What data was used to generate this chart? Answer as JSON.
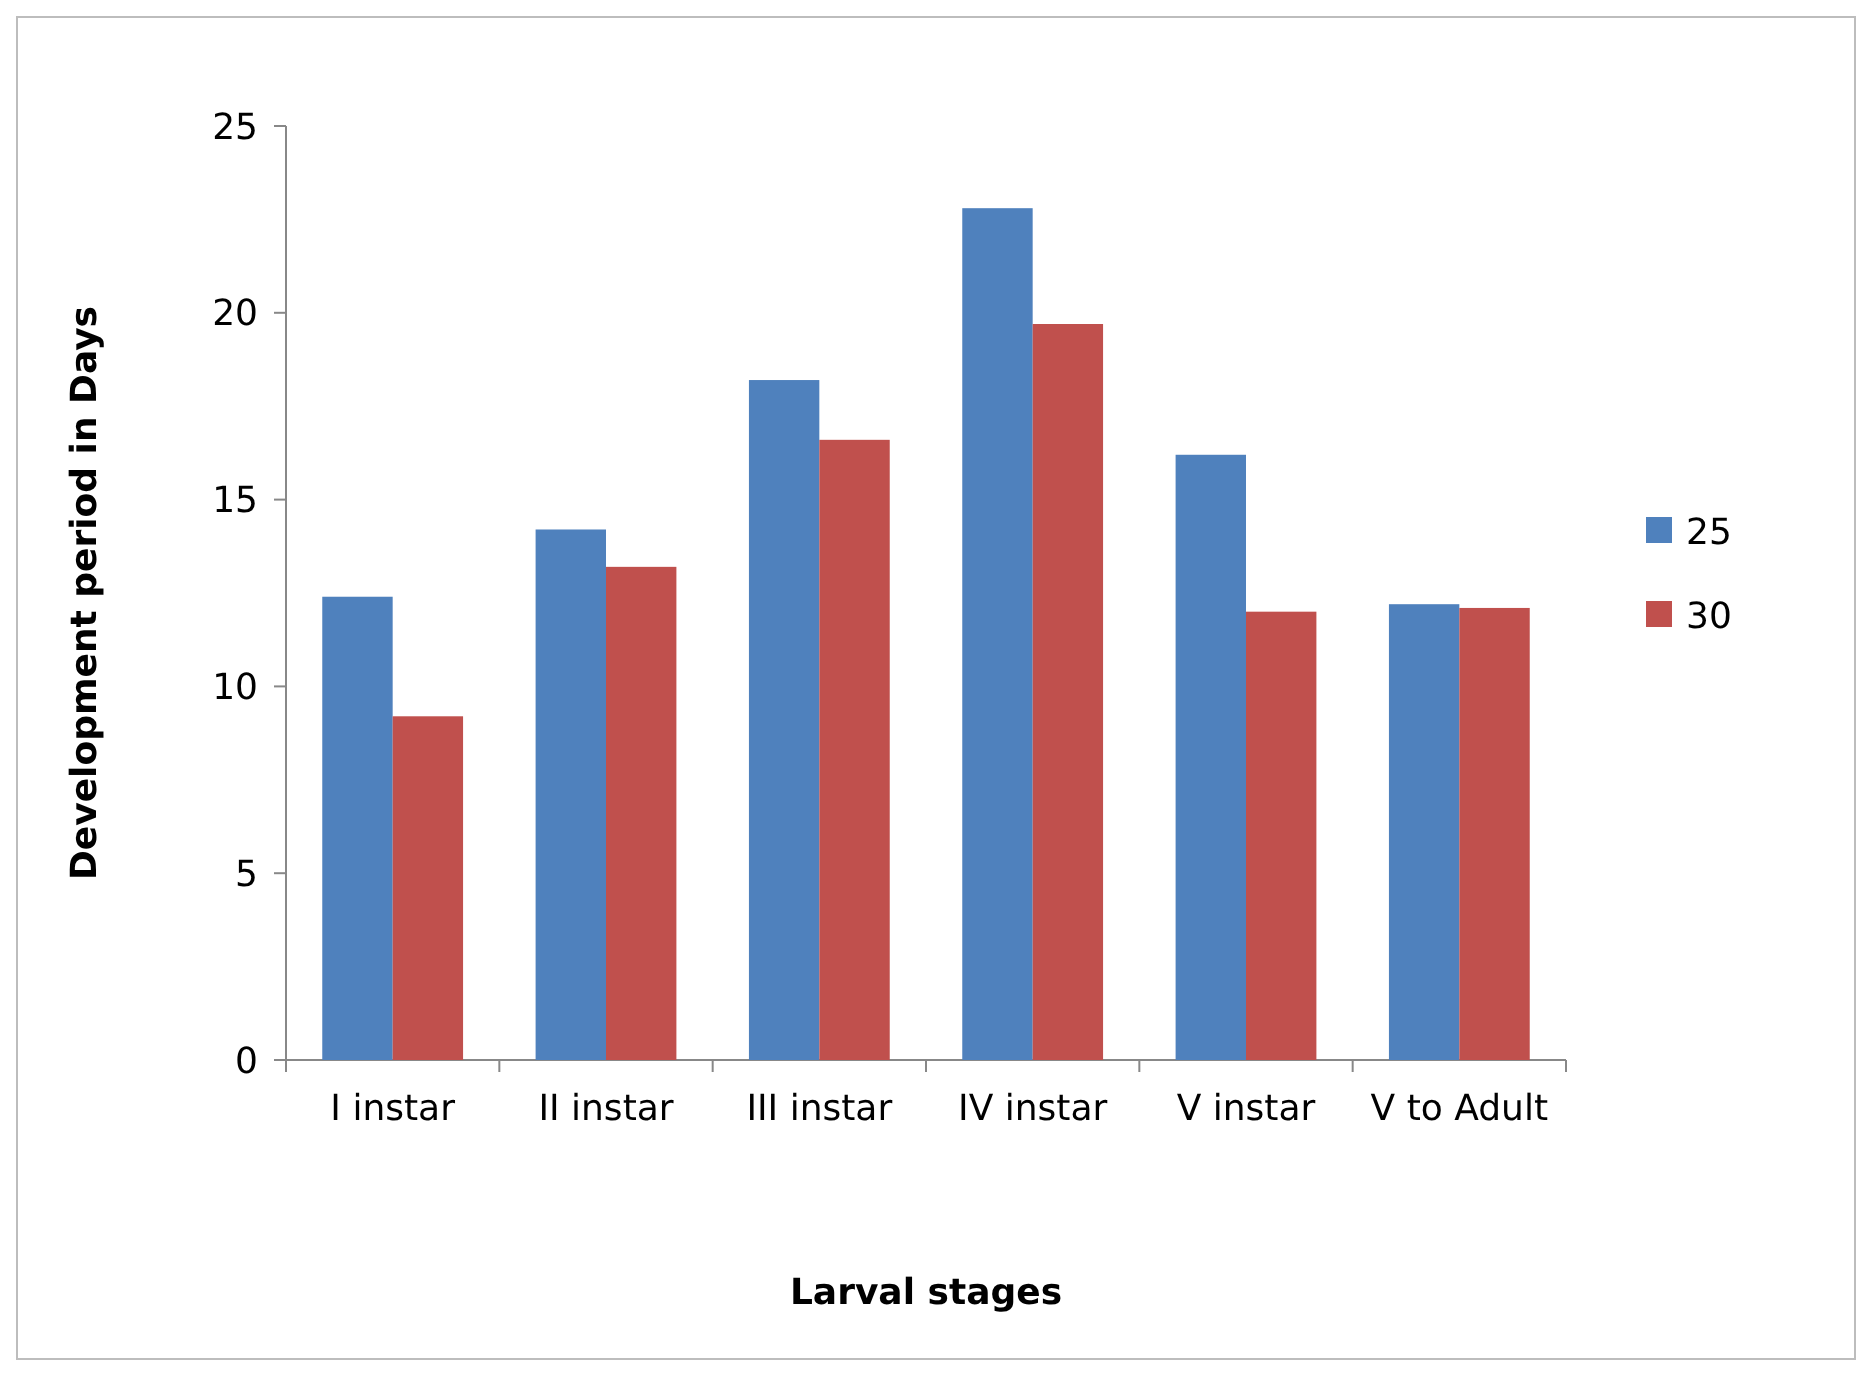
{
  "chart_data": {
    "type": "bar",
    "xlabel": "Larval stages",
    "ylabel": "Development period in Days",
    "categories": [
      "I instar",
      "II instar",
      "III instar",
      "IV instar",
      "V instar",
      "V to Adult"
    ],
    "series": [
      {
        "name": "25",
        "color": "#4f81bd",
        "values": [
          12.4,
          14.2,
          18.2,
          22.8,
          16.2,
          12.2
        ]
      },
      {
        "name": "30",
        "color": "#c0504d",
        "values": [
          9.2,
          13.2,
          16.6,
          19.7,
          12.0,
          12.1
        ]
      }
    ],
    "ylim": [
      0,
      25
    ],
    "yticks": [
      0,
      5,
      10,
      15,
      20,
      25
    ],
    "grid": false,
    "legend": "right"
  }
}
